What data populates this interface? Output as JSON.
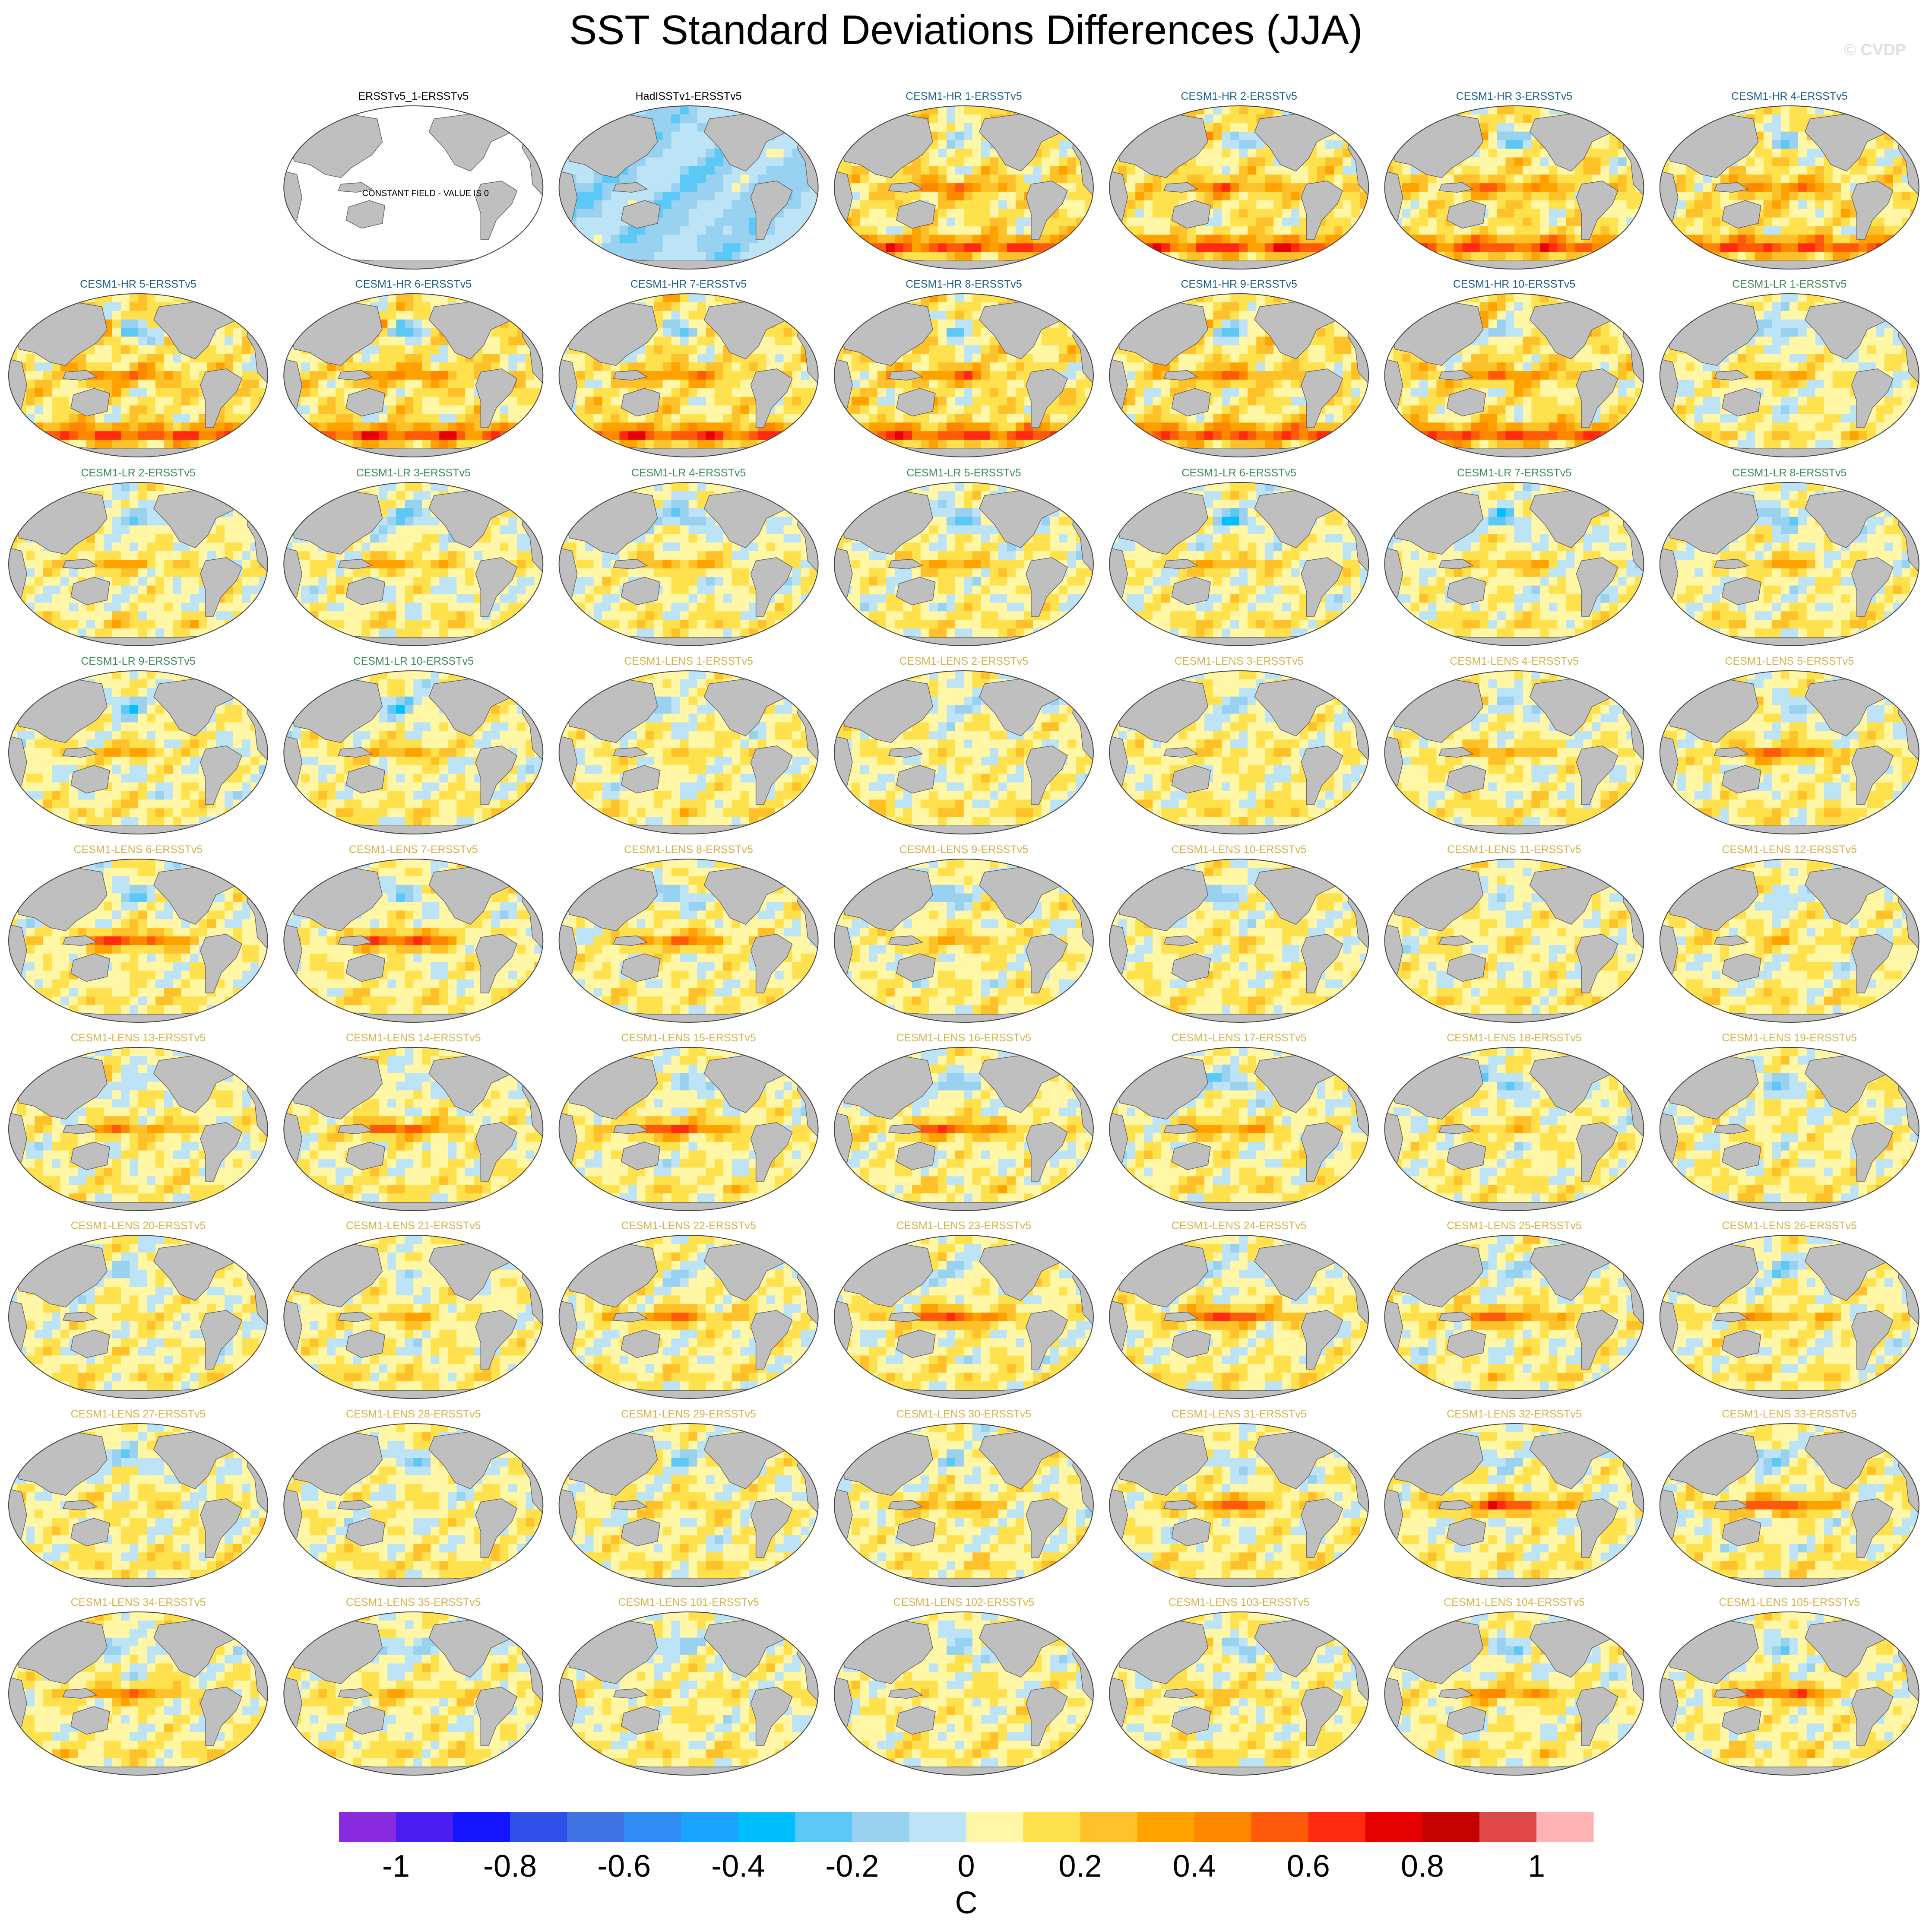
{
  "title": "SST Standard Deviations Differences (JJA)",
  "watermark": "© CVDP",
  "colors": {
    "hr": "#1a5f8a",
    "lr": "#3d8a5a",
    "lens": "#d6b24a",
    "obs": "#000000",
    "land": "#bfbfbf"
  },
  "chart_data": {
    "type": "heatmap",
    "projection": "Robinson (global maps, Pacific-centered)",
    "panels": [
      {
        "title": "ERSSTv5_1-ERSSTv5",
        "group": "obs",
        "note": "CONSTANT FIELD - VALUE IS 0"
      },
      {
        "title": "HadISSTv1-ERSSTv5",
        "group": "obs",
        "pattern": "had"
      },
      {
        "title": "CESM1-HR 1-ERSSTv5",
        "group": "hr"
      },
      {
        "title": "CESM1-HR 2-ERSSTv5",
        "group": "hr"
      },
      {
        "title": "CESM1-HR 3-ERSSTv5",
        "group": "hr"
      },
      {
        "title": "CESM1-HR 4-ERSSTv5",
        "group": "hr"
      },
      {
        "title": "CESM1-HR 5-ERSSTv5",
        "group": "hr"
      },
      {
        "title": "CESM1-HR 6-ERSSTv5",
        "group": "hr"
      },
      {
        "title": "CESM1-HR 7-ERSSTv5",
        "group": "hr"
      },
      {
        "title": "CESM1-HR 8-ERSSTv5",
        "group": "hr"
      },
      {
        "title": "CESM1-HR 9-ERSSTv5",
        "group": "hr"
      },
      {
        "title": "CESM1-HR 10-ERSSTv5",
        "group": "hr"
      },
      {
        "title": "CESM1-LR 1-ERSSTv5",
        "group": "lr"
      },
      {
        "title": "CESM1-LR 2-ERSSTv5",
        "group": "lr"
      },
      {
        "title": "CESM1-LR 3-ERSSTv5",
        "group": "lr"
      },
      {
        "title": "CESM1-LR 4-ERSSTv5",
        "group": "lr"
      },
      {
        "title": "CESM1-LR 5-ERSSTv5",
        "group": "lr"
      },
      {
        "title": "CESM1-LR 6-ERSSTv5",
        "group": "lr"
      },
      {
        "title": "CESM1-LR 7-ERSSTv5",
        "group": "lr"
      },
      {
        "title": "CESM1-LR 8-ERSSTv5",
        "group": "lr"
      },
      {
        "title": "CESM1-LR 9-ERSSTv5",
        "group": "lr"
      },
      {
        "title": "CESM1-LR 10-ERSSTv5",
        "group": "lr"
      },
      {
        "title": "CESM1-LENS 1-ERSSTv5",
        "group": "lens"
      },
      {
        "title": "CESM1-LENS 2-ERSSTv5",
        "group": "lens"
      },
      {
        "title": "CESM1-LENS 3-ERSSTv5",
        "group": "lens"
      },
      {
        "title": "CESM1-LENS 4-ERSSTv5",
        "group": "lens"
      },
      {
        "title": "CESM1-LENS 5-ERSSTv5",
        "group": "lens"
      },
      {
        "title": "CESM1-LENS 6-ERSSTv5",
        "group": "lens"
      },
      {
        "title": "CESM1-LENS 7-ERSSTv5",
        "group": "lens"
      },
      {
        "title": "CESM1-LENS 8-ERSSTv5",
        "group": "lens"
      },
      {
        "title": "CESM1-LENS 9-ERSSTv5",
        "group": "lens"
      },
      {
        "title": "CESM1-LENS 10-ERSSTv5",
        "group": "lens"
      },
      {
        "title": "CESM1-LENS 11-ERSSTv5",
        "group": "lens"
      },
      {
        "title": "CESM1-LENS 12-ERSSTv5",
        "group": "lens"
      },
      {
        "title": "CESM1-LENS 13-ERSSTv5",
        "group": "lens"
      },
      {
        "title": "CESM1-LENS 14-ERSSTv5",
        "group": "lens"
      },
      {
        "title": "CESM1-LENS 15-ERSSTv5",
        "group": "lens"
      },
      {
        "title": "CESM1-LENS 16-ERSSTv5",
        "group": "lens"
      },
      {
        "title": "CESM1-LENS 17-ERSSTv5",
        "group": "lens"
      },
      {
        "title": "CESM1-LENS 18-ERSSTv5",
        "group": "lens"
      },
      {
        "title": "CESM1-LENS 19-ERSSTv5",
        "group": "lens"
      },
      {
        "title": "CESM1-LENS 20-ERSSTv5",
        "group": "lens"
      },
      {
        "title": "CESM1-LENS 21-ERSSTv5",
        "group": "lens"
      },
      {
        "title": "CESM1-LENS 22-ERSSTv5",
        "group": "lens"
      },
      {
        "title": "CESM1-LENS 23-ERSSTv5",
        "group": "lens"
      },
      {
        "title": "CESM1-LENS 24-ERSSTv5",
        "group": "lens"
      },
      {
        "title": "CESM1-LENS 25-ERSSTv5",
        "group": "lens"
      },
      {
        "title": "CESM1-LENS 26-ERSSTv5",
        "group": "lens"
      },
      {
        "title": "CESM1-LENS 27-ERSSTv5",
        "group": "lens"
      },
      {
        "title": "CESM1-LENS 28-ERSSTv5",
        "group": "lens"
      },
      {
        "title": "CESM1-LENS 29-ERSSTv5",
        "group": "lens"
      },
      {
        "title": "CESM1-LENS 30-ERSSTv5",
        "group": "lens"
      },
      {
        "title": "CESM1-LENS 31-ERSSTv5",
        "group": "lens"
      },
      {
        "title": "CESM1-LENS 32-ERSSTv5",
        "group": "lens"
      },
      {
        "title": "CESM1-LENS 33-ERSSTv5",
        "group": "lens"
      },
      {
        "title": "CESM1-LENS 34-ERSSTv5",
        "group": "lens"
      },
      {
        "title": "CESM1-LENS 35-ERSSTv5",
        "group": "lens"
      },
      {
        "title": "CESM1-LENS 101-ERSSTv5",
        "group": "lens"
      },
      {
        "title": "CESM1-LENS 102-ERSSTv5",
        "group": "lens"
      },
      {
        "title": "CESM1-LENS 103-ERSSTv5",
        "group": "lens"
      },
      {
        "title": "CESM1-LENS 104-ERSSTv5",
        "group": "lens"
      },
      {
        "title": "CESM1-LENS 105-ERSSTv5",
        "group": "lens"
      }
    ],
    "colorbar": {
      "unit": "C",
      "levels": [
        -1.1,
        -1.0,
        -0.9,
        -0.8,
        -0.7,
        -0.6,
        -0.5,
        -0.4,
        -0.3,
        -0.2,
        -0.1,
        0,
        0.1,
        0.2,
        0.3,
        0.4,
        0.5,
        0.6,
        0.7,
        0.8,
        0.9,
        1.0,
        1.1
      ],
      "colors": [
        "#8a2be2",
        "#4b1ef0",
        "#1414ff",
        "#2e4fe8",
        "#3f73e6",
        "#2f8cf5",
        "#1aa3ff",
        "#00bfff",
        "#5cc8f5",
        "#99d1f0",
        "#bde3f7",
        "#fff7a6",
        "#ffe14d",
        "#ffc12a",
        "#ffa200",
        "#ff8800",
        "#ff5a0a",
        "#ff2a0f",
        "#e60000",
        "#c40000",
        "#e04848",
        "#ffb3b3"
      ],
      "tick_values": [
        -1,
        -0.8,
        -0.6,
        -0.4,
        -0.2,
        0,
        0.2,
        0.4,
        0.6,
        0.8,
        1
      ],
      "tick_labels": [
        "-1",
        "-0.8",
        "-0.6",
        "-0.4",
        "-0.2",
        "0",
        "0.2",
        "0.4",
        "0.6",
        "0.8",
        "1"
      ]
    }
  }
}
